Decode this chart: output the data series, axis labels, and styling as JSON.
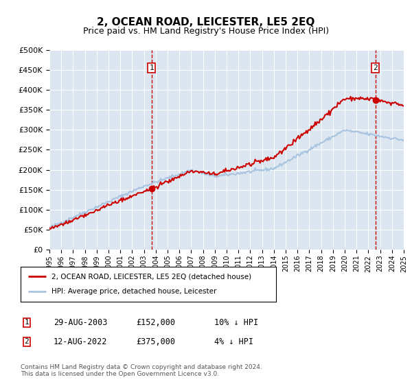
{
  "title": "2, OCEAN ROAD, LEICESTER, LE5 2EQ",
  "subtitle": "Price paid vs. HM Land Registry's House Price Index (HPI)",
  "background_color": "#dce6f0",
  "hpi_color": "#a8c4e0",
  "price_color": "#cc0000",
  "vline_color": "#cc0000",
  "ylim": [
    0,
    500000
  ],
  "yticks": [
    0,
    50000,
    100000,
    150000,
    200000,
    250000,
    300000,
    350000,
    400000,
    450000,
    500000
  ],
  "sale1_year": 2003.65,
  "sale1_price": 152000,
  "sale2_year": 2022.6,
  "sale2_price": 375000,
  "legend_entries": [
    "2, OCEAN ROAD, LEICESTER, LE5 2EQ (detached house)",
    "HPI: Average price, detached house, Leicester"
  ],
  "table_rows": [
    [
      "1",
      "29-AUG-2003",
      "£152,000",
      "10% ↓ HPI"
    ],
    [
      "2",
      "12-AUG-2022",
      "£375,000",
      "4% ↓ HPI"
    ]
  ],
  "footnote": "Contains HM Land Registry data © Crown copyright and database right 2024.\nThis data is licensed under the Open Government Licence v3.0."
}
